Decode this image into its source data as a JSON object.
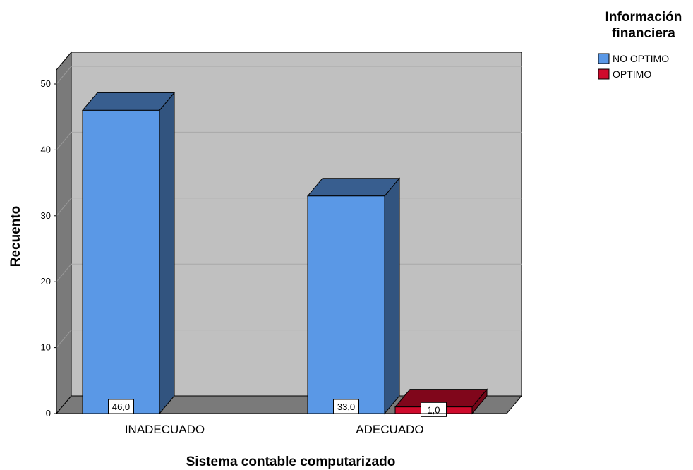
{
  "chart_data": {
    "type": "bar",
    "title": "",
    "xlabel": "Sistema contable computarizado",
    "ylabel": "Recuento",
    "categories": [
      "INADECUADO",
      "ADECUADO"
    ],
    "series": [
      {
        "name": "NO OPTIMO",
        "values": [
          46,
          33
        ],
        "labels": [
          "46,0",
          "33,0"
        ],
        "color": "#5a98e6"
      },
      {
        "name": "OPTIMO",
        "values": [
          0,
          1
        ],
        "labels": [
          "",
          "1,0"
        ],
        "color": "#cf0a2c"
      }
    ],
    "ylim": [
      0,
      50
    ],
    "yticks": [
      "0",
      "10",
      "20",
      "30",
      "40",
      "50"
    ],
    "grid": true,
    "legend": {
      "title": "Información financiera",
      "position": "top-right"
    },
    "wall_color": "#c0c0c0",
    "side_wall_color": "#7a7a7a"
  }
}
